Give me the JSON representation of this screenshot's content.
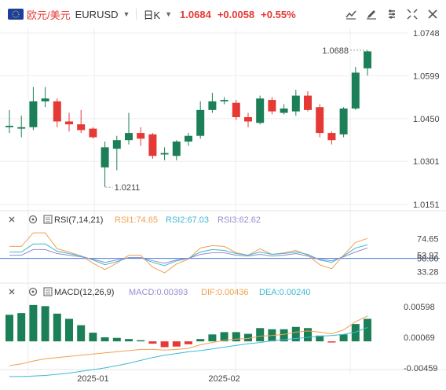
{
  "toolbar": {
    "symbol_name": "欧元/美元",
    "symbol_code": "EURUSD",
    "timeframe": "日K",
    "last_price": "1.0684",
    "change": "+0.0058",
    "change_pct": "+0.55%",
    "tool_icons": [
      "indicator-icon",
      "draw-icon",
      "settings-icon",
      "crosshair-icon",
      "close-icon"
    ]
  },
  "colors": {
    "up": "#1b7f57",
    "down": "#e53935",
    "rsi1": "#f0a050",
    "rsi2": "#3dbad0",
    "rsi3": "#9a8ad0",
    "macd": "#9a8ad0",
    "dif": "#f0a050",
    "dea": "#3dbad0",
    "grid": "#eeeeee",
    "ref_line": "#3d7fd4"
  },
  "chart_data": [
    {
      "type": "candlestick",
      "panel": "price",
      "y_ticks": [
        "1.0748",
        "1.0599",
        "1.0450",
        "1.0301",
        "1.0151"
      ],
      "ylim": [
        1.0151,
        1.0748
      ],
      "annotations": {
        "high_label": "1.0688",
        "low_label": "1.0211"
      },
      "x_labels": [
        {
          "label": "2025-01",
          "index": 7
        },
        {
          "label": "2025-02",
          "index": 18
        }
      ],
      "ohlc": [
        [
          1.042,
          1.048,
          1.04,
          1.0425
        ],
        [
          1.0415,
          1.046,
          1.0385,
          1.042
        ],
        [
          1.042,
          1.056,
          1.041,
          1.051
        ],
        [
          1.051,
          1.056,
          1.049,
          1.052
        ],
        [
          1.051,
          1.052,
          1.042,
          1.044
        ],
        [
          1.044,
          1.047,
          1.0405,
          1.043
        ],
        [
          1.043,
          1.048,
          1.04,
          1.041
        ],
        [
          1.0415,
          1.042,
          1.038,
          1.0385
        ],
        [
          1.028,
          1.037,
          1.0211,
          1.035
        ],
        [
          1.0345,
          1.039,
          1.027,
          1.0375
        ],
        [
          1.0375,
          1.047,
          1.036,
          1.04
        ],
        [
          1.04,
          1.042,
          1.0355,
          1.038
        ],
        [
          1.0395,
          1.04,
          1.031,
          1.032
        ],
        [
          1.0325,
          1.035,
          1.0305,
          1.033
        ],
        [
          1.032,
          1.0375,
          1.0305,
          1.037
        ],
        [
          1.037,
          1.04,
          1.0355,
          1.039
        ],
        [
          1.039,
          1.051,
          1.038,
          1.048
        ],
        [
          1.048,
          1.054,
          1.047,
          1.051
        ],
        [
          1.051,
          1.0525,
          1.05,
          1.0515
        ],
        [
          1.0505,
          1.0515,
          1.0445,
          1.0455
        ],
        [
          1.0455,
          1.047,
          1.042,
          1.044
        ],
        [
          1.0435,
          1.053,
          1.043,
          1.052
        ],
        [
          1.0515,
          1.0525,
          1.0465,
          1.0475
        ],
        [
          1.047,
          1.05,
          1.0465,
          1.0485
        ],
        [
          1.0475,
          1.055,
          1.046,
          1.053
        ],
        [
          1.053,
          1.0545,
          1.0475,
          1.048
        ],
        [
          1.049,
          1.05,
          1.0385,
          1.04
        ],
        [
          1.04,
          1.0405,
          1.036,
          1.0375
        ],
        [
          1.0395,
          1.049,
          1.0385,
          1.0485
        ],
        [
          1.0485,
          1.063,
          1.048,
          1.061
        ],
        [
          1.0625,
          1.0688,
          1.06,
          1.0684
        ]
      ]
    },
    {
      "type": "line",
      "panel": "rsi",
      "title": "RSI(7,14,21)",
      "legend": [
        "RSI1:74.65",
        "RSI2:67.03",
        "RSI3:62.62"
      ],
      "y_ticks": [
        "74.65",
        "53.97",
        "50.00",
        "33.28"
      ],
      "ylim": [
        25,
        90
      ],
      "reference": 50,
      "series": [
        {
          "name": "RSI1",
          "values": [
            65,
            65,
            82,
            82,
            62,
            58,
            53,
            44,
            36,
            44,
            54,
            54,
            39,
            32,
            43,
            49,
            63,
            66,
            65,
            57,
            54,
            62,
            55,
            57,
            60,
            54,
            42,
            37,
            54,
            70,
            75
          ]
        },
        {
          "name": "RSI2",
          "values": [
            58,
            58,
            68,
            68,
            59,
            56,
            53,
            48,
            42,
            46,
            51,
            51,
            45,
            41,
            47,
            50,
            58,
            61,
            60,
            56,
            54,
            58,
            55,
            56,
            58,
            55,
            48,
            45,
            53,
            63,
            67
          ]
        },
        {
          "name": "RSI3",
          "values": [
            54,
            54,
            61,
            61,
            56,
            54,
            52,
            49,
            45,
            48,
            51,
            51,
            47,
            44,
            48,
            50,
            55,
            57,
            57,
            54,
            53,
            55,
            53,
            54,
            56,
            53,
            49,
            47,
            52,
            58,
            63
          ]
        }
      ]
    },
    {
      "type": "bar",
      "panel": "macd",
      "title": "MACD(12,26,9)",
      "legend": [
        "MACD:0.00393",
        "DIF:0.00436",
        "DEA:0.00240"
      ],
      "y_ticks": [
        "0.00598",
        "0.00069",
        "-0.00459"
      ],
      "ylim": [
        -0.0057,
        0.0071
      ],
      "series": [
        {
          "name": "MACD",
          "values": [
            0.0046,
            0.0049,
            0.0063,
            0.0061,
            0.0048,
            0.0039,
            0.0028,
            0.0015,
            0.0007,
            0.0006,
            0.0004,
            0.0002,
            -0.0004,
            -0.001,
            -0.0009,
            -0.0005,
            0.0004,
            0.0012,
            0.0016,
            0.0016,
            0.0013,
            0.0023,
            0.0021,
            0.0021,
            0.0025,
            0.0023,
            0.001,
            -0.0002,
            0.0012,
            0.003,
            0.0039
          ]
        },
        {
          "name": "DIF",
          "values": [
            -0.0042,
            -0.0039,
            -0.0034,
            -0.003,
            -0.0028,
            -0.0026,
            -0.0024,
            -0.0022,
            -0.002,
            -0.0018,
            -0.0016,
            -0.0014,
            -0.0014,
            -0.0015,
            -0.0014,
            -0.0012,
            -0.0006,
            -0.0002,
            0.0002,
            0.0004,
            0.0005,
            0.0009,
            0.001,
            0.0012,
            0.0016,
            0.0018,
            0.0016,
            0.0013,
            0.002,
            0.0034,
            0.0044
          ]
        },
        {
          "name": "DEA",
          "values": [
            -0.0061,
            -0.0061,
            -0.006,
            -0.0059,
            -0.0057,
            -0.0055,
            -0.0052,
            -0.0049,
            -0.0046,
            -0.0042,
            -0.0038,
            -0.0033,
            -0.0028,
            -0.0024,
            -0.0021,
            -0.0018,
            -0.0016,
            -0.0013,
            -0.001,
            -0.0007,
            -0.0004,
            -0.0002,
            0.0001,
            0.0003,
            0.0005,
            0.0007,
            0.0009,
            0.001,
            0.0012,
            0.0016,
            0.0024
          ]
        }
      ]
    }
  ]
}
